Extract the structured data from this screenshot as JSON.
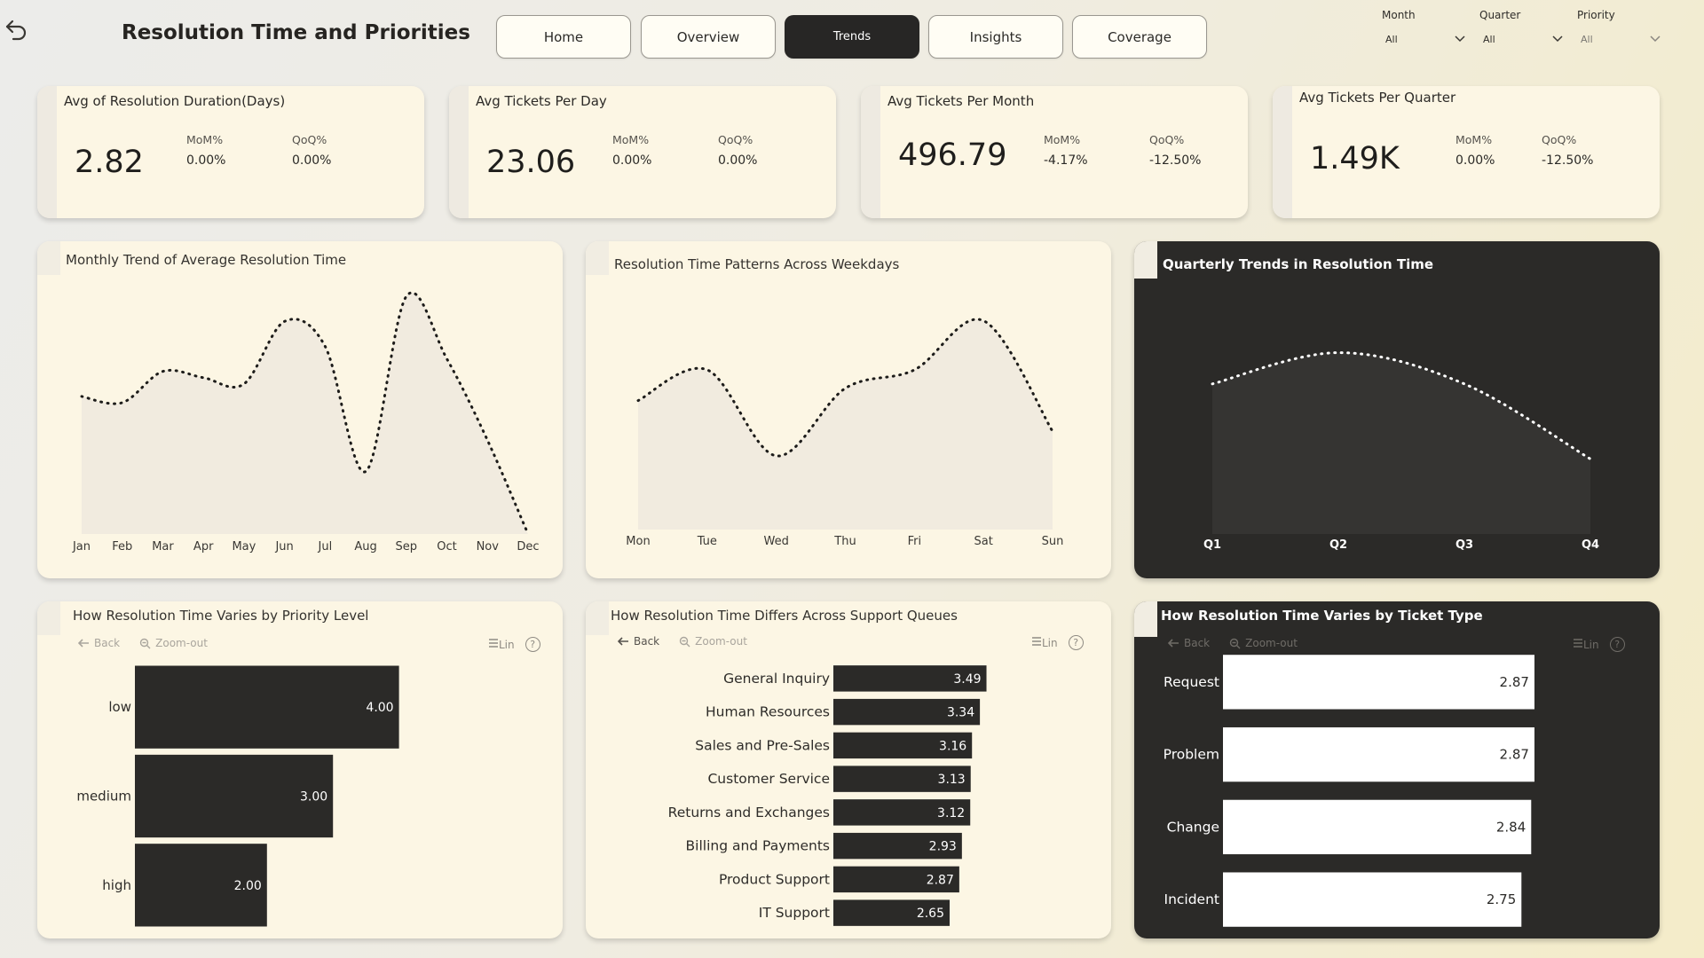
{
  "header": {
    "title": "Resolution Time and Priorities",
    "nav": [
      "Home",
      "Overview",
      "Trends",
      "Insights",
      "Coverage"
    ],
    "active_nav": "Trends",
    "filters": [
      {
        "label": "Month",
        "value": "All"
      },
      {
        "label": "Quarter",
        "value": "All"
      },
      {
        "label": "Priority",
        "value": "All"
      }
    ]
  },
  "kpis": [
    {
      "title": "Avg of Resolution Duration(Days)",
      "value": "2.82",
      "mom_label": "MoM%",
      "mom": "0.00%",
      "qoq_label": "QoQ%",
      "qoq": "0.00%"
    },
    {
      "title": "Avg Tickets Per Day",
      "value": "23.06",
      "mom_label": "MoM%",
      "mom": "0.00%",
      "qoq_label": "QoQ%",
      "qoq": "0.00%"
    },
    {
      "title": "Avg Tickets Per Month",
      "value": "496.79",
      "mom_label": "MoM%",
      "mom": "-4.17%",
      "qoq_label": "QoQ%",
      "qoq": "-12.50%"
    },
    {
      "title": "Avg Tickets Per Quarter",
      "value": "1.49K",
      "mom_label": "MoM%",
      "mom": "0.00%",
      "qoq_label": "QoQ%",
      "qoq": "-12.50%"
    }
  ],
  "toolbar": {
    "back": "Back",
    "zoom": "Zoom-out",
    "lin": "Lin",
    "help": "?"
  },
  "colors": {
    "ink": "#2b2a28",
    "card": "#fcf6e4",
    "area": "#f1ebdf",
    "dark_area": "#353432"
  },
  "chart_data": [
    {
      "type": "area",
      "title": "Monthly Trend of Average Resolution Time",
      "categories": [
        "Jan",
        "Feb",
        "Mar",
        "Apr",
        "May",
        "Jun",
        "Jul",
        "Aug",
        "Sep",
        "Oct",
        "Nov",
        "Dec"
      ],
      "values": [
        2.82,
        2.81,
        2.86,
        2.85,
        2.84,
        2.94,
        2.9,
        2.7,
        2.98,
        2.88,
        2.75,
        2.6
      ],
      "ylim": [
        2.6,
        3.0
      ],
      "line_style": "dotted"
    },
    {
      "type": "area",
      "title": "Resolution Time Patterns Across Weekdays",
      "categories": [
        "Mon",
        "Tue",
        "Wed",
        "Thu",
        "Fri",
        "Sat",
        "Sun"
      ],
      "values": [
        2.81,
        2.86,
        2.72,
        2.83,
        2.86,
        2.94,
        2.76
      ],
      "ylim": [
        2.6,
        3.0
      ],
      "line_style": "dotted"
    },
    {
      "type": "area",
      "title": "Quarterly Trends in Resolution Time",
      "categories": [
        "Q1",
        "Q2",
        "Q3",
        "Q4"
      ],
      "values": [
        2.84,
        2.89,
        2.84,
        2.72
      ],
      "ylim": [
        2.6,
        3.0
      ],
      "line_style": "dotted"
    },
    {
      "type": "bar",
      "orientation": "horizontal",
      "title": "How Resolution Time Varies by Priority Level",
      "categories": [
        "low",
        "medium",
        "high"
      ],
      "values": [
        4.0,
        3.0,
        2.0
      ],
      "labels": [
        "4.00",
        "3.00",
        "2.00"
      ],
      "xlim": [
        0,
        5
      ]
    },
    {
      "type": "bar",
      "orientation": "horizontal",
      "title": "How Resolution Time Differs Across Support Queues",
      "categories": [
        "General Inquiry",
        "Human Resources",
        "Sales and Pre-Sales",
        "Customer Service",
        "Returns and Exchanges",
        "Billing and Payments",
        "Product Support",
        "IT Support"
      ],
      "values": [
        3.49,
        3.34,
        3.16,
        3.13,
        3.12,
        2.93,
        2.87,
        2.65
      ],
      "labels": [
        "3.49",
        "3.34",
        "3.16",
        "3.13",
        "3.12",
        "2.93",
        "2.87",
        "2.65"
      ],
      "xlim": [
        0,
        5.3
      ]
    },
    {
      "type": "bar",
      "orientation": "horizontal",
      "title": "How Resolution Time Varies by Ticket Type",
      "categories": [
        "Request",
        "Problem",
        "Change",
        "Incident"
      ],
      "values": [
        2.87,
        2.87,
        2.84,
        2.75
      ],
      "labels": [
        "2.87",
        "2.87",
        "2.84",
        "2.75"
      ],
      "xlim": [
        0,
        3.5
      ]
    }
  ]
}
